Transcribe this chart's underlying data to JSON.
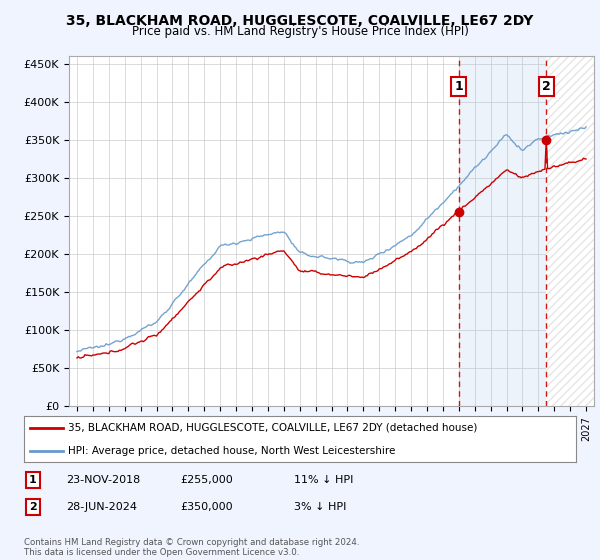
{
  "title": "35, BLACKHAM ROAD, HUGGLESCOTE, COALVILLE, LE67 2DY",
  "subtitle": "Price paid vs. HM Land Registry's House Price Index (HPI)",
  "legend_line1": "35, BLACKHAM ROAD, HUGGLESCOTE, COALVILLE, LE67 2DY (detached house)",
  "legend_line2": "HPI: Average price, detached house, North West Leicestershire",
  "annotation1_date": "23-NOV-2018",
  "annotation1_price": "£255,000",
  "annotation1_hpi": "11% ↓ HPI",
  "annotation1_year": 2019.0,
  "annotation1_value": 255000,
  "annotation2_date": "28-JUN-2024",
  "annotation2_price": "£350,000",
  "annotation2_hpi": "3% ↓ HPI",
  "annotation2_year": 2024.5,
  "annotation2_value": 350000,
  "hpi_color": "#6699cc",
  "price_color": "#cc0000",
  "annotation_color": "#cc0000",
  "background_color": "#f0f4ff",
  "plot_bg_color": "#ffffff",
  "ylim": [
    0,
    460000
  ],
  "xlim_start": 1994.5,
  "xlim_end": 2027.5,
  "footer": "Contains HM Land Registry data © Crown copyright and database right 2024.\nThis data is licensed under the Open Government Licence v3.0.",
  "yticks": [
    0,
    50000,
    100000,
    150000,
    200000,
    250000,
    300000,
    350000,
    400000,
    450000
  ],
  "ytick_labels": [
    "£0",
    "£50K",
    "£100K",
    "£150K",
    "£200K",
    "£250K",
    "£300K",
    "£350K",
    "£400K",
    "£450K"
  ]
}
